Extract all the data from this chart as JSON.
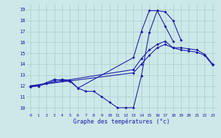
{
  "xlabel": "Graphe des températures (°c)",
  "background_color": "#cce8e8",
  "grid_color": "#aacaca",
  "line_color": "#1a1aaa",
  "hours": [
    0,
    1,
    2,
    3,
    4,
    5,
    6,
    7,
    8,
    9,
    10,
    11,
    12,
    13,
    14,
    15,
    16,
    17,
    18,
    19,
    20,
    21,
    22,
    23
  ],
  "curve_min": [
    11.9,
    12.0,
    12.2,
    12.5,
    12.6,
    12.5,
    11.8,
    11.5,
    11.5,
    11.0,
    10.5,
    10.0,
    10.0,
    10.0,
    12.9,
    16.9,
    18.9,
    18.8,
    18.0,
    16.2,
    null,
    null,
    null,
    null
  ],
  "curve_daily": [
    12.0,
    12.0,
    12.3,
    12.6,
    12.5,
    12.4,
    11.8,
    null,
    null,
    null,
    null,
    null,
    null,
    14.6,
    17.0,
    18.9,
    18.9,
    17.5,
    16.1,
    null,
    null,
    null,
    null,
    null
  ],
  "curve_avg1": [
    12.0,
    null,
    null,
    null,
    null,
    null,
    null,
    null,
    null,
    null,
    null,
    null,
    null,
    13.5,
    14.5,
    15.3,
    15.8,
    16.1,
    15.5,
    15.5,
    15.4,
    15.3,
    14.9,
    14.0
  ],
  "curve_avg2": [
    12.0,
    null,
    null,
    null,
    null,
    null,
    null,
    null,
    null,
    null,
    null,
    null,
    null,
    13.2,
    14.0,
    14.8,
    15.5,
    15.8,
    15.5,
    15.3,
    15.2,
    15.1,
    14.8,
    13.9
  ],
  "ylim": [
    9.5,
    19.5
  ],
  "yticks": [
    10,
    11,
    12,
    13,
    14,
    15,
    16,
    17,
    18,
    19
  ],
  "xlim": [
    -0.5,
    23.5
  ],
  "xticks": [
    0,
    1,
    2,
    3,
    4,
    5,
    6,
    7,
    8,
    9,
    10,
    11,
    12,
    13,
    14,
    15,
    16,
    17,
    18,
    19,
    20,
    21,
    22,
    23
  ]
}
